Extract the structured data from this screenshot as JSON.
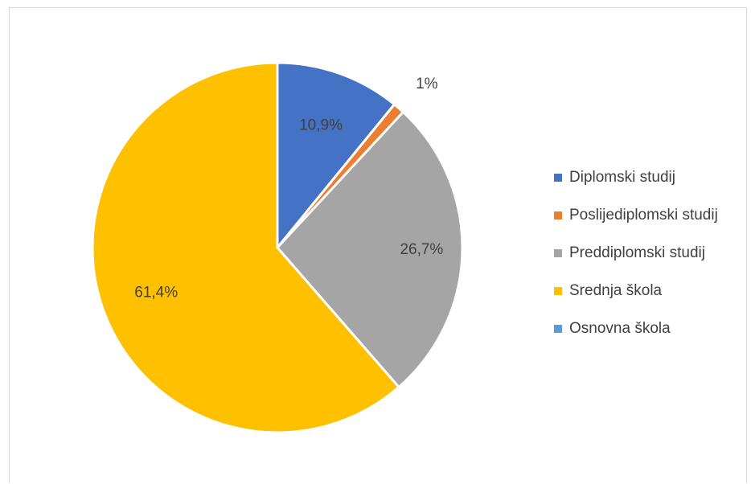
{
  "chart_data": {
    "type": "pie",
    "categories": [
      "Diplomski studij",
      "Poslijediplomski studij",
      "Preddiplomski studij",
      "Srednja škola",
      "Osnovna škola"
    ],
    "values": [
      10.9,
      1,
      26.7,
      61.4,
      0
    ],
    "data_labels": [
      "10,9%",
      "1%",
      "26,7%",
      "61,4%",
      ""
    ],
    "colors": [
      "#4472c4",
      "#ed7d31",
      "#a5a5a5",
      "#ffc000",
      "#5b9bd5"
    ],
    "legend_position": "right",
    "start_angle_deg": 0,
    "direction": "clockwise"
  }
}
